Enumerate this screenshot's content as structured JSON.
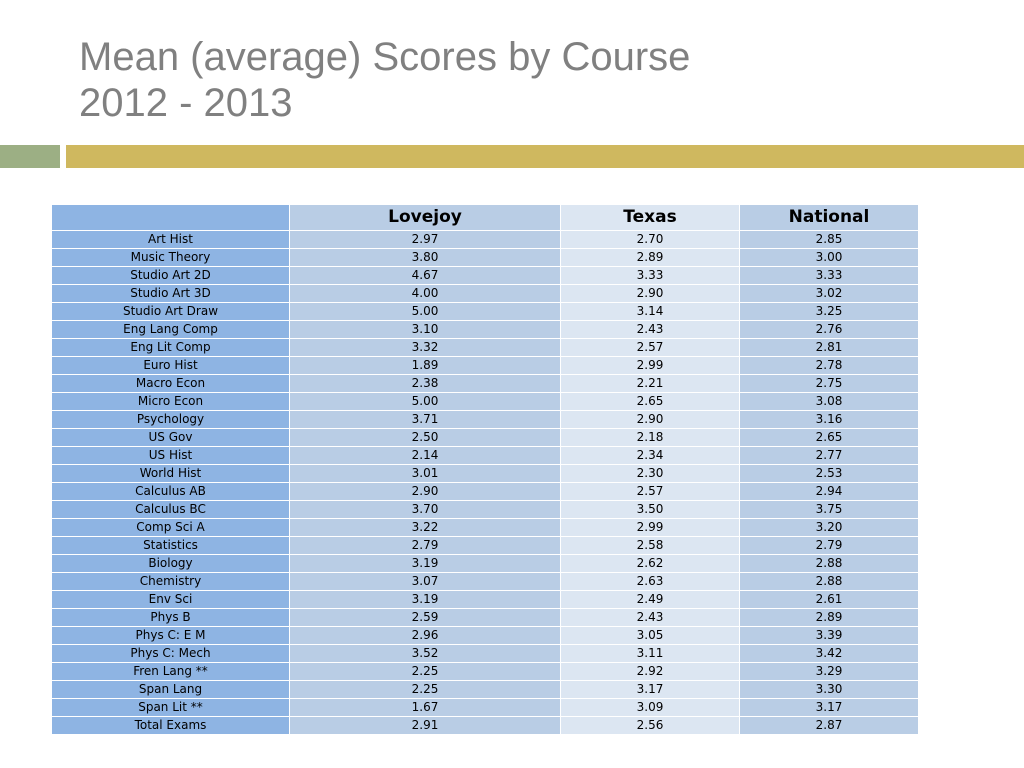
{
  "title": {
    "line1": "Mean (average) Scores by Course",
    "line2": "2012 - 2013"
  },
  "colors": {
    "title_text": "#808080",
    "accent_green": "#9caf84",
    "accent_gold": "#cfb85f",
    "label_column": "#8eb4e3",
    "column_medium": "#b9cde5",
    "column_light": "#dce6f2"
  },
  "table": {
    "columns": [
      "",
      "Lovejoy",
      "Texas",
      "National"
    ],
    "rows": [
      [
        "Art Hist",
        "2.97",
        "2.70",
        "2.85"
      ],
      [
        "Music Theory",
        "3.80",
        "2.89",
        "3.00"
      ],
      [
        "Studio Art 2D",
        "4.67",
        "3.33",
        "3.33"
      ],
      [
        "Studio Art 3D",
        "4.00",
        "2.90",
        "3.02"
      ],
      [
        "Studio Art Draw",
        "5.00",
        "3.14",
        "3.25"
      ],
      [
        "Eng Lang Comp",
        "3.10",
        "2.43",
        "2.76"
      ],
      [
        "Eng Lit Comp",
        "3.32",
        "2.57",
        "2.81"
      ],
      [
        "Euro Hist",
        "1.89",
        "2.99",
        "2.78"
      ],
      [
        "Macro Econ",
        "2.38",
        "2.21",
        "2.75"
      ],
      [
        "Micro Econ",
        "5.00",
        "2.65",
        "3.08"
      ],
      [
        "Psychology",
        "3.71",
        "2.90",
        "3.16"
      ],
      [
        "US Gov",
        "2.50",
        "2.18",
        "2.65"
      ],
      [
        "US Hist",
        "2.14",
        "2.34",
        "2.77"
      ],
      [
        "World Hist",
        "3.01",
        "2.30",
        "2.53"
      ],
      [
        "Calculus AB",
        "2.90",
        "2.57",
        "2.94"
      ],
      [
        "Calculus BC",
        "3.70",
        "3.50",
        "3.75"
      ],
      [
        "Comp Sci A",
        "3.22",
        "2.99",
        "3.20"
      ],
      [
        "Statistics",
        "2.79",
        "2.58",
        "2.79"
      ],
      [
        "Biology",
        "3.19",
        "2.62",
        "2.88"
      ],
      [
        "Chemistry",
        "3.07",
        "2.63",
        "2.88"
      ],
      [
        "Env Sci",
        "3.19",
        "2.49",
        "2.61"
      ],
      [
        "Phys B",
        "2.59",
        "2.43",
        "2.89"
      ],
      [
        "Phys C: E M",
        "2.96",
        "3.05",
        "3.39"
      ],
      [
        "Phys C: Mech",
        "3.52",
        "3.11",
        "3.42"
      ],
      [
        "Fren Lang  **",
        "2.25",
        "2.92",
        "3.29"
      ],
      [
        "Span Lang",
        "2.25",
        "3.17",
        "3.30"
      ],
      [
        "Span Lit  **",
        "1.67",
        "3.09",
        "3.17"
      ],
      [
        "Total Exams",
        "2.91",
        "2.56",
        "2.87"
      ]
    ]
  }
}
